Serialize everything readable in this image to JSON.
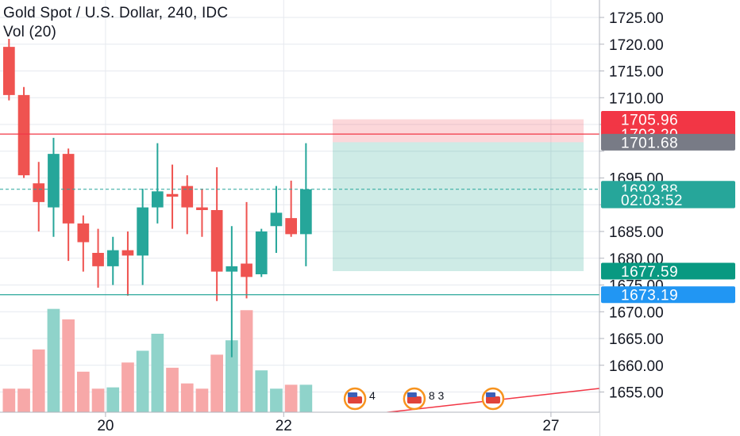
{
  "chart_data": {
    "type": "candlestick",
    "title": "Gold Spot / U.S. Dollar, 240, IDC",
    "volume_label": "Vol (20)",
    "y_ticks": [
      1725,
      1720,
      1715,
      1710,
      1705,
      1700,
      1695,
      1690,
      1685,
      1680,
      1675,
      1670,
      1665,
      1660,
      1655
    ],
    "y_tick_labels": [
      "1725.00",
      "1720.00",
      "1715.00",
      "1710.00",
      "",
      "",
      "1695.00",
      "",
      "1685.00",
      "1680.00",
      "1675.00",
      "1670.00",
      "1665.00",
      "1660.00",
      "1655.00"
    ],
    "ylim": [
      1651.5,
      1727.2
    ],
    "x_labels": [
      {
        "label": "20",
        "bar": 7
      },
      {
        "label": "22",
        "bar": 19
      },
      {
        "label": "27",
        "bar": 37
      }
    ],
    "candles": [
      {
        "o": 1719.5,
        "h": 1721.0,
        "l": 1709.5,
        "c": 1710.5
      },
      {
        "o": 1710.5,
        "h": 1712.0,
        "l": 1695.0,
        "c": 1695.5
      },
      {
        "o": 1694.0,
        "h": 1698.0,
        "l": 1685.0,
        "c": 1690.5
      },
      {
        "o": 1689.5,
        "h": 1702.5,
        "l": 1684.0,
        "c": 1699.5
      },
      {
        "o": 1699.5,
        "h": 1700.5,
        "l": 1679.5,
        "c": 1686.5
      },
      {
        "o": 1686.5,
        "h": 1688.0,
        "l": 1677.5,
        "c": 1683.0
      },
      {
        "o": 1681.0,
        "h": 1685.5,
        "l": 1674.5,
        "c": 1678.5
      },
      {
        "o": 1678.5,
        "h": 1684.0,
        "l": 1675.0,
        "c": 1681.5
      },
      {
        "o": 1681.5,
        "h": 1685.0,
        "l": 1673.0,
        "c": 1680.5
      },
      {
        "o": 1680.5,
        "h": 1693.0,
        "l": 1675.0,
        "c": 1689.5
      },
      {
        "o": 1689.5,
        "h": 1701.5,
        "l": 1686.5,
        "c": 1692.5
      },
      {
        "o": 1692.0,
        "h": 1697.5,
        "l": 1685.5,
        "c": 1691.5
      },
      {
        "o": 1693.5,
        "h": 1695.5,
        "l": 1684.5,
        "c": 1689.5
      },
      {
        "o": 1689.5,
        "h": 1693.0,
        "l": 1684.0,
        "c": 1689.0
      },
      {
        "o": 1689.0,
        "h": 1697.0,
        "l": 1672.0,
        "c": 1677.5
      },
      {
        "o": 1677.5,
        "h": 1686.0,
        "l": 1661.5,
        "c": 1678.5
      },
      {
        "o": 1679.0,
        "h": 1690.5,
        "l": 1672.5,
        "c": 1676.5
      },
      {
        "o": 1677.0,
        "h": 1685.5,
        "l": 1676.5,
        "c": 1685.0
      },
      {
        "o": 1686.0,
        "h": 1693.5,
        "l": 1681.0,
        "c": 1688.5
      },
      {
        "o": 1687.5,
        "h": 1694.5,
        "l": 1684.0,
        "c": 1684.5
      },
      {
        "o": 1684.5,
        "h": 1701.5,
        "l": 1678.5,
        "c": 1692.88
      }
    ],
    "volume": [
      {
        "v": 0.18,
        "dir": "down"
      },
      {
        "v": 0.18,
        "dir": "down"
      },
      {
        "v": 0.48,
        "dir": "down"
      },
      {
        "v": 0.79,
        "dir": "up"
      },
      {
        "v": 0.71,
        "dir": "down"
      },
      {
        "v": 0.31,
        "dir": "down"
      },
      {
        "v": 0.18,
        "dir": "down"
      },
      {
        "v": 0.19,
        "dir": "up"
      },
      {
        "v": 0.38,
        "dir": "down"
      },
      {
        "v": 0.47,
        "dir": "up"
      },
      {
        "v": 0.6,
        "dir": "up"
      },
      {
        "v": 0.34,
        "dir": "down"
      },
      {
        "v": 0.22,
        "dir": "down"
      },
      {
        "v": 0.18,
        "dir": "down"
      },
      {
        "v": 0.44,
        "dir": "down"
      },
      {
        "v": 0.55,
        "dir": "up"
      },
      {
        "v": 0.78,
        "dir": "down"
      },
      {
        "v": 0.32,
        "dir": "up"
      },
      {
        "v": 0.18,
        "dir": "up"
      },
      {
        "v": 0.21,
        "dir": "down"
      },
      {
        "v": 0.21,
        "dir": "up"
      }
    ],
    "lines": {
      "resistance": 1703.2,
      "support": 1673.19,
      "last_price": 1692.88
    },
    "position_box": {
      "stop": 1705.96,
      "entry": 1701.68,
      "target": 1677.59,
      "start_bar": 22.3,
      "end_bar": 39.2
    },
    "price_labels": [
      {
        "value": 1705.96,
        "text": "1705.96",
        "color": "#f23645"
      },
      {
        "value": 1703.2,
        "text": "1703.20",
        "color": "#f23645"
      },
      {
        "value": 1701.68,
        "text": "1701.68",
        "color": "#787b86"
      },
      {
        "value": 1692.88,
        "text": "1692.88",
        "color": "#26a69a"
      },
      {
        "value": 1690.9,
        "text": "02:03:52",
        "color": "#26a69a"
      },
      {
        "value": 1677.59,
        "text": "1677.59",
        "color": "#089981"
      },
      {
        "value": 1673.19,
        "text": "1673.19",
        "color": "#2196f3"
      }
    ],
    "events": [
      {
        "bar": 23.8,
        "count": "4"
      },
      {
        "bar": 27.8,
        "count": "8 3"
      },
      {
        "bar": 33.1,
        "count": ""
      }
    ],
    "colors": {
      "up": "#26a69a",
      "down": "#ef5350",
      "vol_up": "#8fd3ca",
      "vol_down": "#f7a8a8",
      "grid": "#e6e9ef",
      "axis": "#131722"
    }
  }
}
